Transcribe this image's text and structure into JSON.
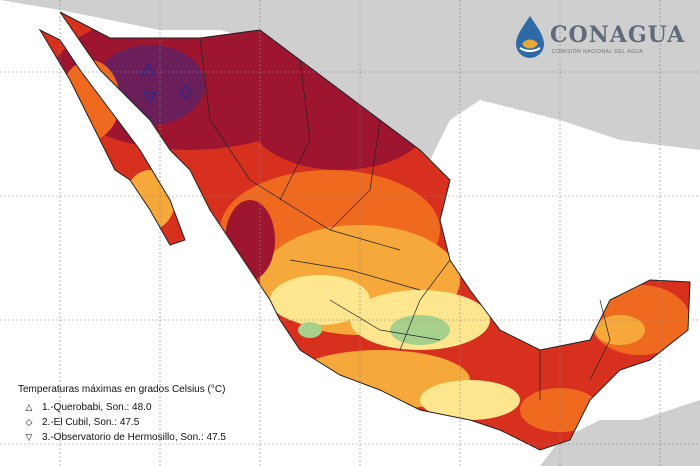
{
  "logo": {
    "name": "CONAGUA",
    "subtitle": "COMISIÓN NACIONAL DEL AGUA"
  },
  "legend": {
    "title": "Temperaturas máximas en grados Celsius (°C)",
    "stations": [
      {
        "symbol": "△",
        "label": "1.-Querobabi, Son.: 48.0"
      },
      {
        "symbol": "◇",
        "label": "2.-El Cubil, Son.: 47.5"
      },
      {
        "symbol": "▽",
        "label": "3.-Observatorio de Hermosillo, Son.: 47.5"
      }
    ]
  },
  "colors": {
    "ocean": "#ffffff",
    "land_outside": "#cfcfcf",
    "hot_extreme": "#6b1f5a",
    "hot_very": "#9e1530",
    "hot": "#d8301f",
    "warm": "#ef6a1e",
    "mild": "#f6a93a",
    "cool": "#fde68e",
    "coolest": "#a8d08d"
  }
}
